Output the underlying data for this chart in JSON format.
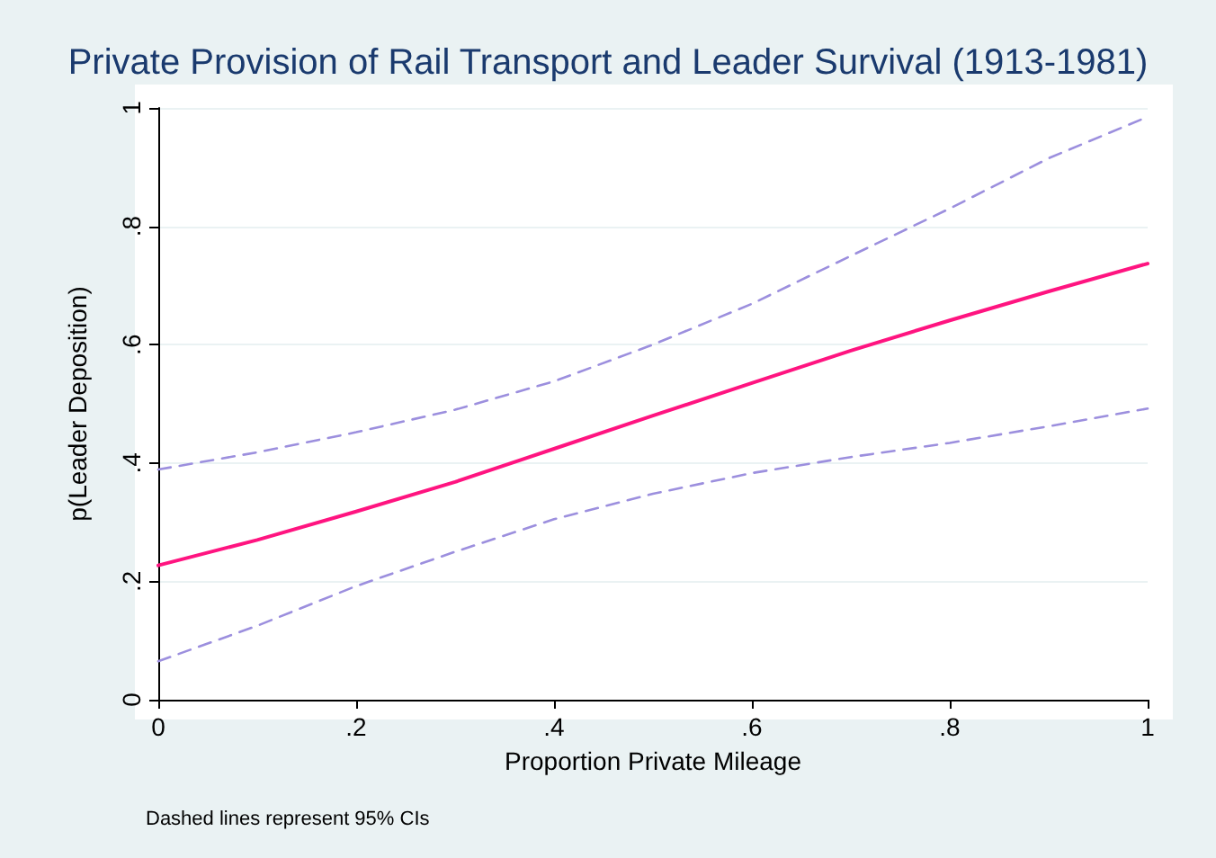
{
  "chart_data": {
    "type": "line",
    "title": "Private Provision of Rail Transport and Leader Survival (1913-1981)",
    "xlabel": "Proportion Private Mileage",
    "ylabel": "p(Leader Deposition)",
    "annotations": [
      "Dashed lines represent 95% CIs"
    ],
    "x": [
      0,
      0.1,
      0.2,
      0.3,
      0.4,
      0.5,
      0.6,
      0.7,
      0.8,
      0.9,
      1
    ],
    "series": [
      {
        "color": "#ff1480",
        "line_style": "solid",
        "values": [
          0.227,
          0.27,
          0.318,
          0.368,
          0.424,
          0.48,
          0.535,
          0.59,
          0.641,
          0.69,
          0.737
        ]
      },
      {
        "color": "#9c8fde",
        "line_style": "dashed",
        "values": [
          0.389,
          0.418,
          0.452,
          0.49,
          0.538,
          0.6,
          0.669,
          0.75,
          0.83,
          0.915,
          0.985
        ]
      },
      {
        "color": "#9c8fde",
        "line_style": "dashed",
        "values": [
          0.065,
          0.125,
          0.192,
          0.25,
          0.305,
          0.348,
          0.383,
          0.41,
          0.434,
          0.462,
          0.492
        ]
      }
    ],
    "xlim": [
      0,
      1
    ],
    "xticks": [
      {
        "value": 0,
        "label": "0"
      },
      {
        "value": 0.2,
        "label": ".2"
      },
      {
        "value": 0.4,
        "label": ".4"
      },
      {
        "value": 0.6,
        "label": ".6"
      },
      {
        "value": 0.8,
        "label": ".8"
      },
      {
        "value": 1,
        "label": "1"
      }
    ],
    "ylim": [
      0,
      1
    ],
    "yticks": [
      {
        "value": 0,
        "label": "0"
      },
      {
        "value": 0.2,
        "label": ".2"
      },
      {
        "value": 0.4,
        "label": ".4"
      },
      {
        "value": 0.6,
        "label": ".6"
      },
      {
        "value": 0.8,
        "label": ".8"
      },
      {
        "value": 1,
        "label": "1"
      }
    ],
    "grid": "y",
    "marker": "none"
  }
}
